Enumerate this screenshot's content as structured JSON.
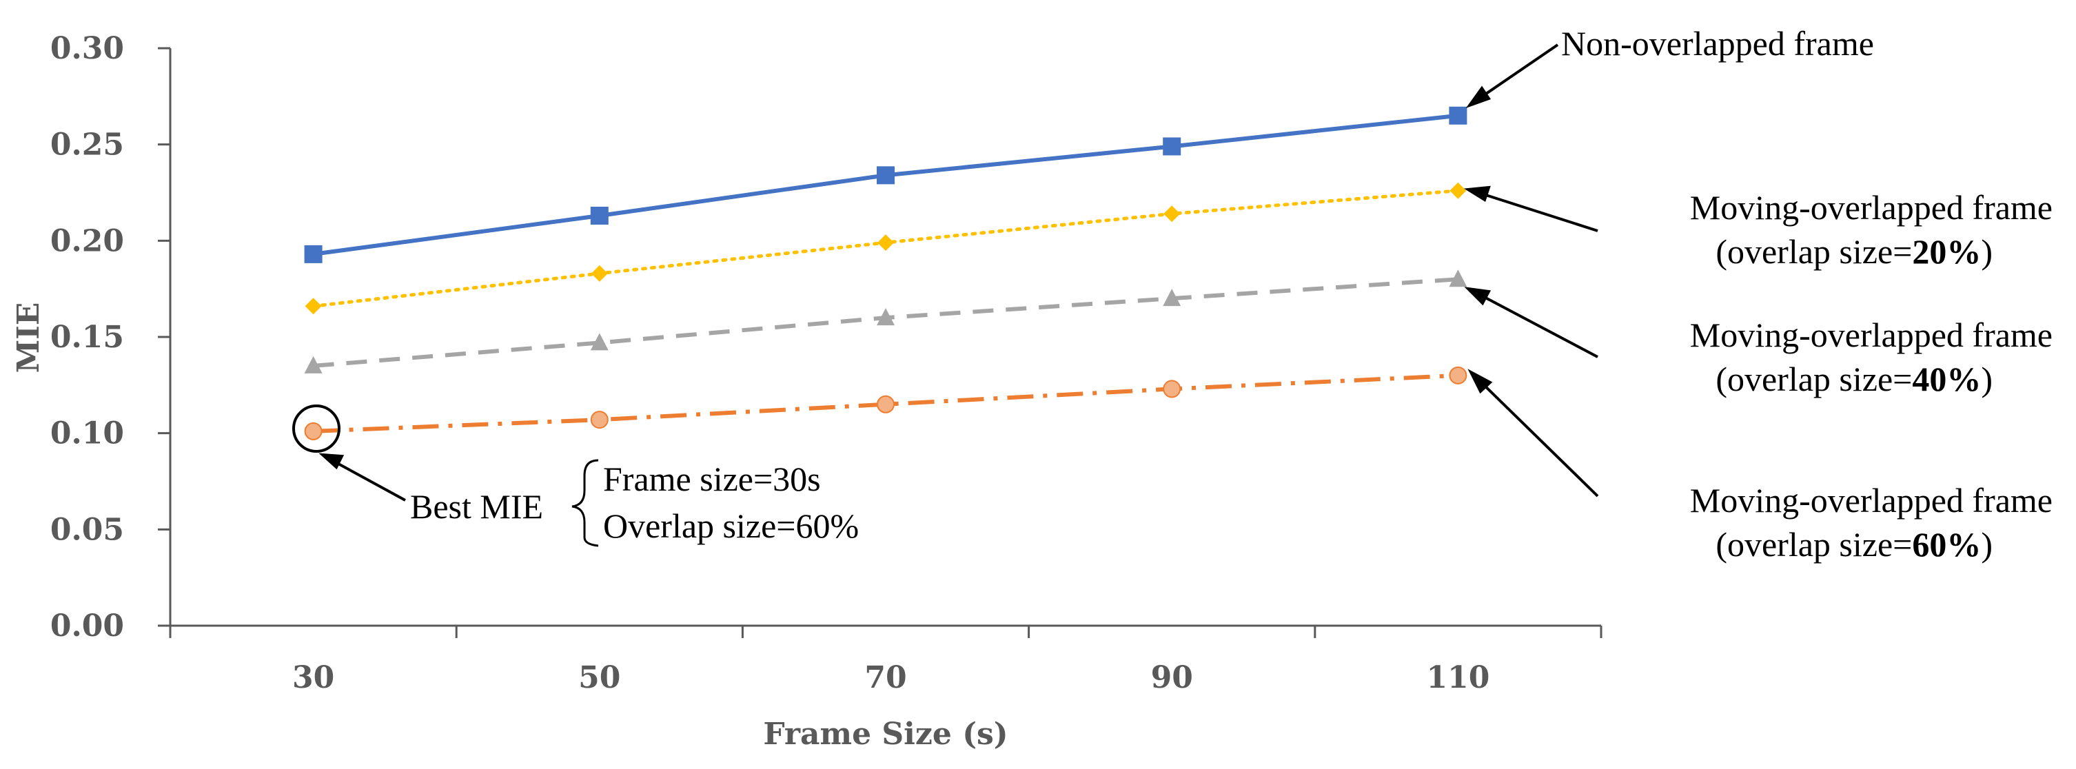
{
  "chart_data": {
    "type": "line",
    "title": "",
    "xlabel": "Frame Size (s)",
    "ylabel": "MIE",
    "x": [
      30,
      50,
      70,
      90,
      110
    ],
    "xlim": [
      20,
      120
    ],
    "ylim": [
      0,
      0.3
    ],
    "x_tick_labels": [
      "30",
      "50",
      "70",
      "90",
      "110"
    ],
    "y_tick_labels": [
      "0.00",
      "0.05",
      "0.10",
      "0.15",
      "0.20",
      "0.25",
      "0.30"
    ],
    "grid": false,
    "series": [
      {
        "name": "Non-overlapped frame",
        "values": [
          0.193,
          0.213,
          0.234,
          0.249,
          0.265
        ],
        "color": "#4472C4",
        "marker": "square",
        "line": "solid"
      },
      {
        "name": "Moving-overlapped frame (overlap size=20%)",
        "values": [
          0.166,
          0.183,
          0.199,
          0.214,
          0.226
        ],
        "color": "#FFC000",
        "marker": "diamond",
        "line": "dotted"
      },
      {
        "name": "Moving-overlapped frame (overlap size=40%)",
        "values": [
          0.135,
          0.147,
          0.16,
          0.17,
          0.18
        ],
        "color": "#A5A5A5",
        "marker": "triangle",
        "line": "dashed"
      },
      {
        "name": "Moving-overlapped frame (overlap size=60%)",
        "values": [
          0.101,
          0.107,
          0.115,
          0.123,
          0.13
        ],
        "color": "#ED7D31",
        "marker": "circle",
        "line": "dashdot"
      }
    ],
    "annotations": {
      "non_overlapped": "Non-overlapped frame",
      "moving_overlapped": "Moving-overlapped frame",
      "overlap_prefix": "(overlap size=",
      "overlap_20": "20%",
      "overlap_40": "40%",
      "overlap_60": "60%",
      "overlap_suffix": ")",
      "best_mie": "Best MIE",
      "best_frame_size": "Frame size=30s",
      "best_overlap_size": "Overlap size=60%"
    }
  }
}
